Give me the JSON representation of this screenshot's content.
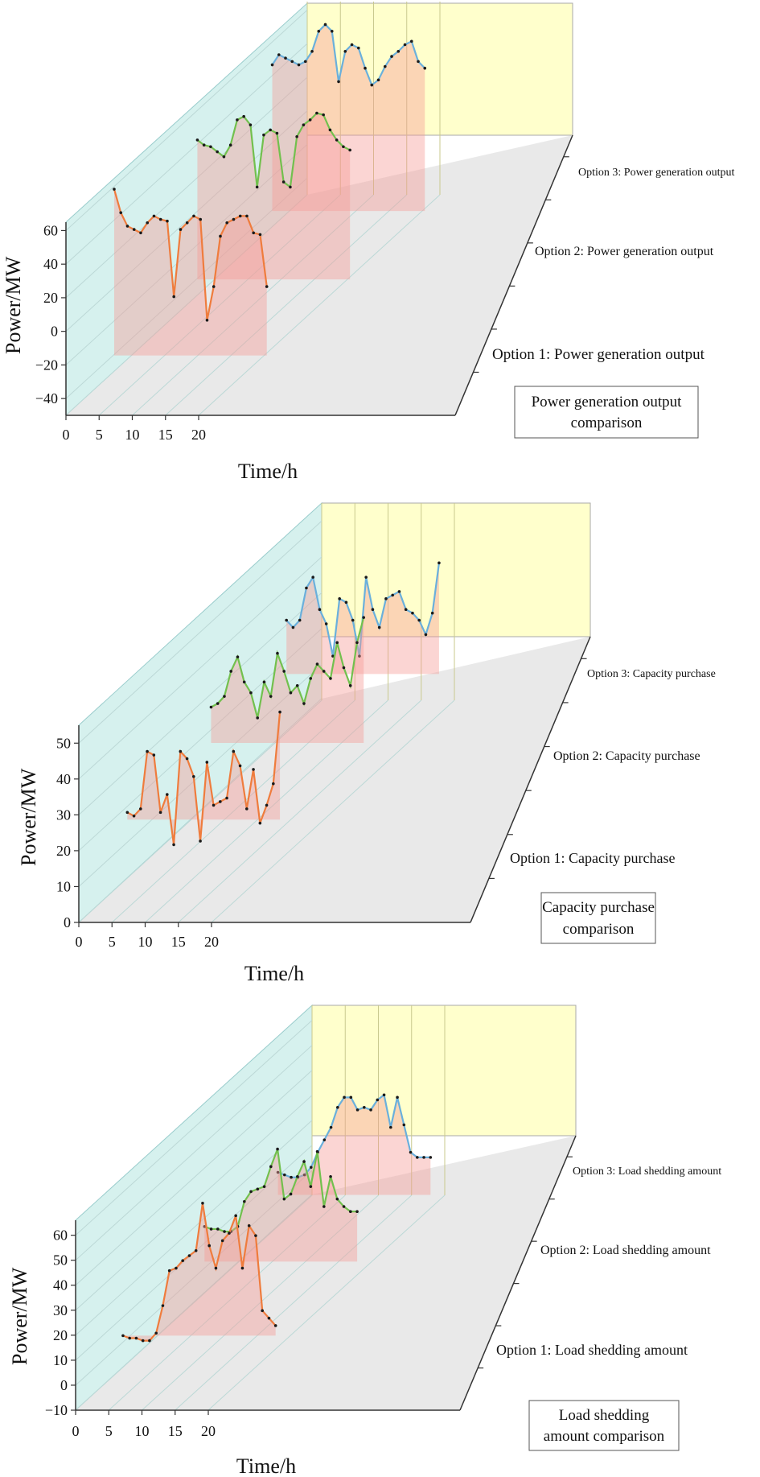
{
  "charts": [
    {
      "id": "generation",
      "chart_data": {
        "type": "line",
        "projection": "3d-waterfall",
        "title": "Power generation output comparison",
        "xlabel": "Time/h",
        "ylabel": "Power/MW",
        "x": [
          1,
          2,
          3,
          4,
          5,
          6,
          7,
          8,
          9,
          10,
          11,
          12,
          13,
          14,
          15,
          16,
          17,
          18,
          19,
          20,
          21,
          22,
          23,
          24
        ],
        "xticks": [
          0,
          5,
          10,
          15,
          20
        ],
        "yticks": [
          -40,
          -20,
          0,
          20,
          40,
          60
        ],
        "ylim": [
          -50,
          65
        ],
        "series": [
          {
            "name": "Option 1: Power generation output",
            "color": "#ef7c3d",
            "values": [
              62,
              48,
              40,
              38,
              36,
              42,
              46,
              44,
              43,
              -2,
              38,
              42,
              46,
              44,
              -16,
              4,
              34,
              42,
              44,
              46,
              46,
              36,
              35,
              4
            ]
          },
          {
            "name": "Option 2: Power generation output",
            "color": "#72c04e",
            "values": [
              46,
              43,
              42,
              39,
              36,
              43,
              58,
              60,
              55,
              18,
              49,
              52,
              50,
              21,
              18,
              48,
              55,
              58,
              62,
              61,
              52,
              46,
              42,
              40
            ]
          },
          {
            "name": "Option 3: Power generation output",
            "color": "#6ab0dc",
            "values": [
              50,
              56,
              54,
              52,
              50,
              52,
              58,
              70,
              74,
              70,
              40,
              58,
              62,
              60,
              48,
              38,
              41,
              49,
              55,
              58,
              62,
              64,
              52,
              48
            ]
          }
        ],
        "box_lines": [
          "Power generation output",
          "comparison"
        ]
      }
    },
    {
      "id": "capacity",
      "chart_data": {
        "type": "line",
        "projection": "3d-waterfall",
        "title": "Capacity purchase comparison",
        "xlabel": "Time/h",
        "ylabel": "Power/MW",
        "x": [
          1,
          2,
          3,
          4,
          5,
          6,
          7,
          8,
          9,
          10,
          11,
          12,
          13,
          14,
          15,
          16,
          17,
          18,
          19,
          20,
          21,
          22,
          23,
          24
        ],
        "xticks": [
          0,
          5,
          10,
          15,
          20
        ],
        "yticks": [
          0,
          10,
          20,
          30,
          40,
          50
        ],
        "ylim": [
          0,
          55
        ],
        "series": [
          {
            "name": "Option 1: Capacity purchase",
            "color": "#ef7c3d",
            "values": [
              20,
              19,
              21,
              37,
              36,
              20,
              25,
              11,
              37,
              35,
              30,
              12,
              34,
              22,
              23,
              24,
              37,
              33,
              21,
              32,
              17,
              22,
              28,
              48
            ]
          },
          {
            "name": "Option 2: Capacity purchase",
            "color": "#72c04e",
            "values": [
              28,
              29,
              31,
              38,
              42,
              35,
              32,
              25,
              35,
              31,
              43,
              38,
              32,
              34,
              29,
              36,
              40,
              38,
              36,
              46,
              39,
              34,
              46,
              53
            ]
          },
          {
            "name": "Option 3: Capacity purchase",
            "color": "#6ab0dc",
            "values": [
              33,
              31,
              33,
              42,
              45,
              36,
              32,
              23,
              39,
              38,
              33,
              23,
              45,
              36,
              31,
              39,
              40,
              41,
              36,
              35,
              33,
              29,
              35,
              49
            ]
          }
        ],
        "box_lines": [
          "Capacity purchase",
          "comparison"
        ]
      }
    },
    {
      "id": "shedding",
      "chart_data": {
        "type": "line",
        "projection": "3d-waterfall",
        "title": "Load shedding amount comparison",
        "xlabel": "Time/h",
        "ylabel": "Power/MW",
        "x": [
          1,
          2,
          3,
          4,
          5,
          6,
          7,
          8,
          9,
          10,
          11,
          12,
          13,
          14,
          15,
          16,
          17,
          18,
          19,
          20,
          21,
          22,
          23,
          24
        ],
        "xticks": [
          0,
          5,
          10,
          15,
          20
        ],
        "yticks": [
          -10,
          0,
          10,
          20,
          30,
          40,
          50,
          60
        ],
        "ylim": [
          -10,
          66
        ],
        "series": [
          {
            "name": "Option 1: Load shedding amount",
            "color": "#ef7c3d",
            "values": [
              5,
              4,
              4,
              3,
              3,
              6,
              17,
              31,
              32,
              35,
              37,
              39,
              58,
              41,
              32,
              43,
              46,
              53,
              32,
              49,
              45,
              15,
              12,
              9
            ]
          },
          {
            "name": "Option 2: Load shedding amount",
            "color": "#72c04e",
            "values": [
              19,
              18,
              18,
              17,
              17,
              19,
              29,
              33,
              34,
              35,
              43,
              50,
              30,
              32,
              39,
              45,
              35,
              49,
              27,
              39,
              30,
              27,
              25,
              25
            ]
          },
          {
            "name": "Option 3: Load shedding amount",
            "color": "#6ab0dc",
            "values": [
              14,
              13,
              12,
              12,
              13,
              16,
              22,
              27,
              32,
              40,
              44,
              44,
              39,
              40,
              39,
              43,
              45,
              32,
              44,
              33,
              22,
              20,
              20,
              20
            ]
          }
        ],
        "box_lines": [
          "Load shedding",
          "amount comparison"
        ]
      }
    }
  ]
}
